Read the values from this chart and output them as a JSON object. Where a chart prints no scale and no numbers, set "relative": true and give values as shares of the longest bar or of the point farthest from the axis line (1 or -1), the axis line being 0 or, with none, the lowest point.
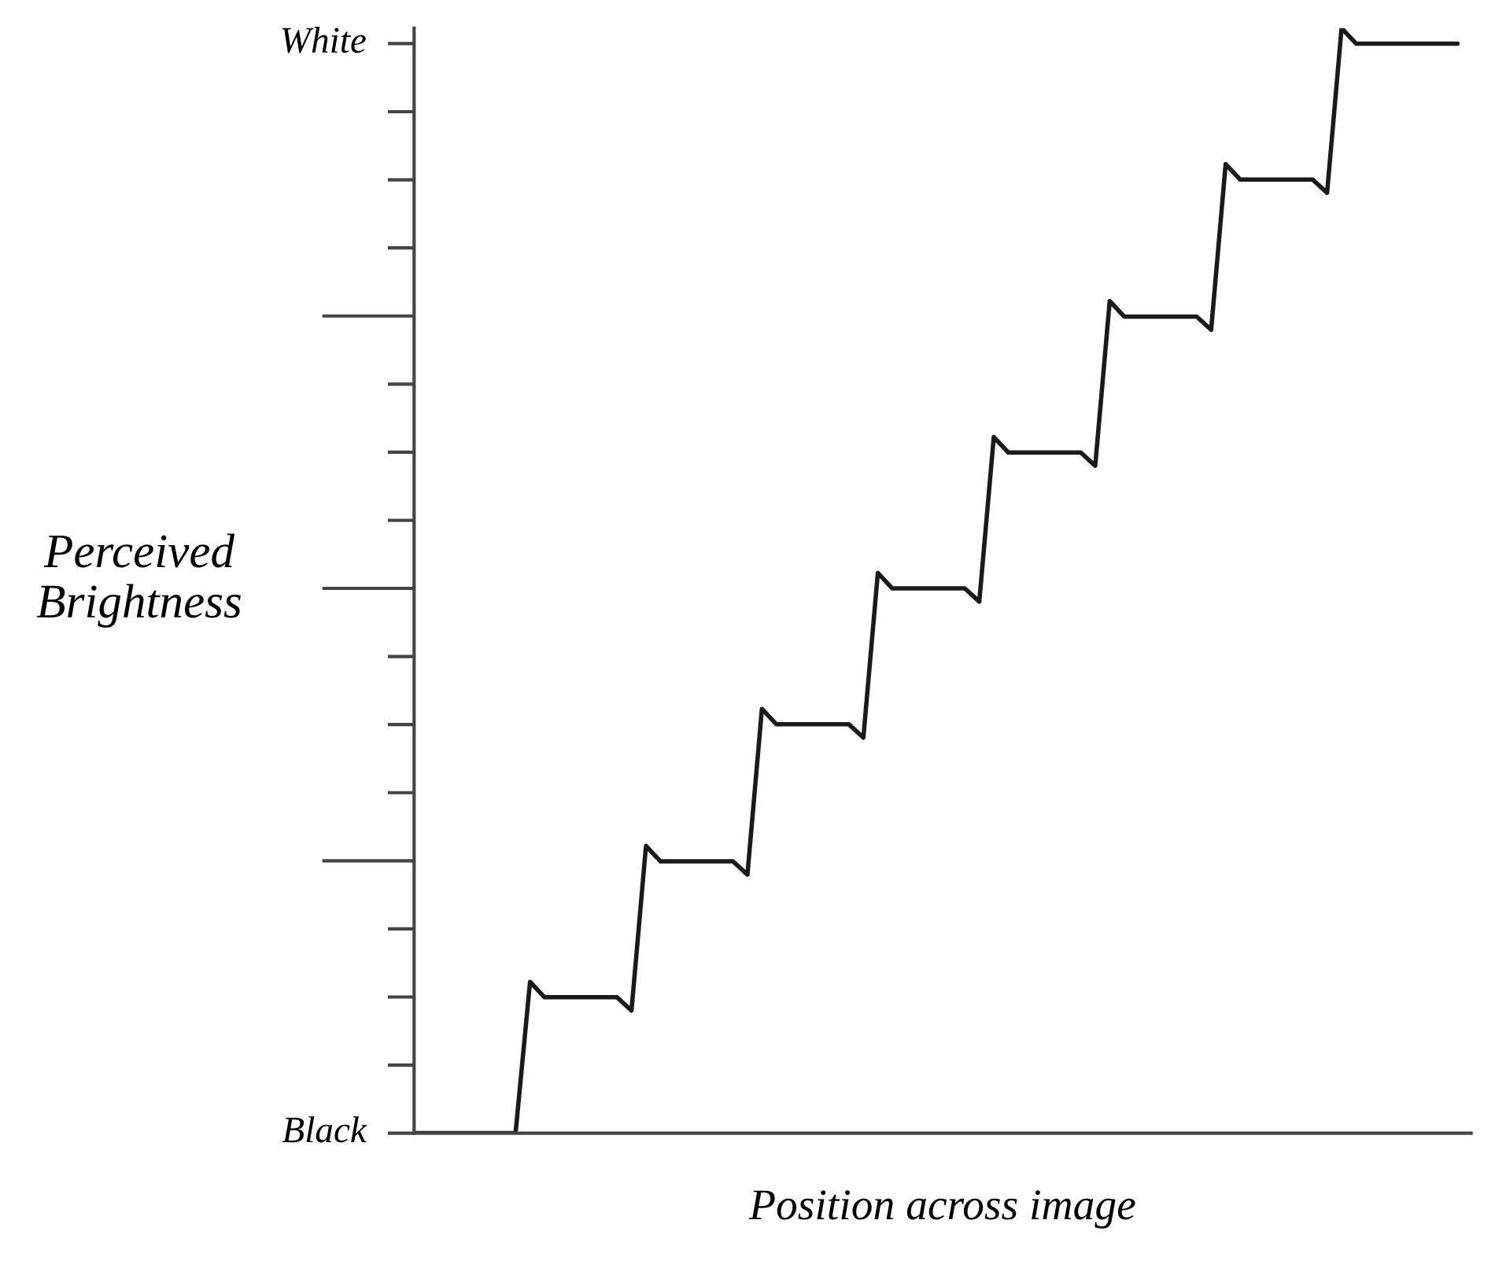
{
  "chart_data": {
    "type": "line",
    "xlabel": "Position across image",
    "ylabel": "Perceived\nBrightness",
    "categories": [
      null,
      null,
      null,
      null,
      null,
      null,
      null,
      null,
      null,
      null,
      null,
      null,
      null,
      null,
      null,
      null,
      null,
      null,
      null,
      null,
      null,
      null,
      null,
      null,
      null,
      null,
      null,
      null,
      null,
      null,
      null,
      null,
      null,
      null,
      null,
      null,
      null,
      null,
      null,
      null,
      null,
      null,
      null,
      null,
      null,
      null,
      null,
      null,
      null,
      null,
      null,
      null,
      null,
      null,
      null,
      null,
      null,
      null,
      null,
      null,
      null,
      null,
      null,
      null,
      null,
      null,
      null,
      null,
      null,
      null,
      null,
      null,
      null
    ],
    "series": [
      {
        "color": "#1a1a1a",
        "values": [
          0,
          0,
          0,
          0,
          0,
          0,
          0,
          0,
          0.137,
          0.123,
          0.123,
          0.123,
          0.123,
          0.123,
          0.123,
          0.111,
          0.26,
          0.246,
          0.246,
          0.246,
          0.246,
          0.246,
          0.246,
          0.234,
          0.384,
          0.37,
          0.37,
          0.37,
          0.37,
          0.37,
          0.37,
          0.358,
          0.507,
          0.493,
          0.493,
          0.493,
          0.493,
          0.493,
          0.493,
          0.481,
          0.63,
          0.616,
          0.616,
          0.616,
          0.616,
          0.616,
          0.616,
          0.604,
          0.753,
          0.739,
          0.739,
          0.739,
          0.739,
          0.739,
          0.739,
          0.727,
          0.877,
          0.863,
          0.863,
          0.863,
          0.863,
          0.863,
          0.863,
          0.851,
          1.0,
          0.986,
          0.986,
          0.986,
          0.986,
          0.986,
          0.986,
          0.986,
          0.986
        ]
      }
    ],
    "relative": true,
    "annotations": [
      "Black",
      "White"
    ],
    "grid": false,
    "legend": false,
    "marker": "none",
    "line_style": "solid"
  }
}
